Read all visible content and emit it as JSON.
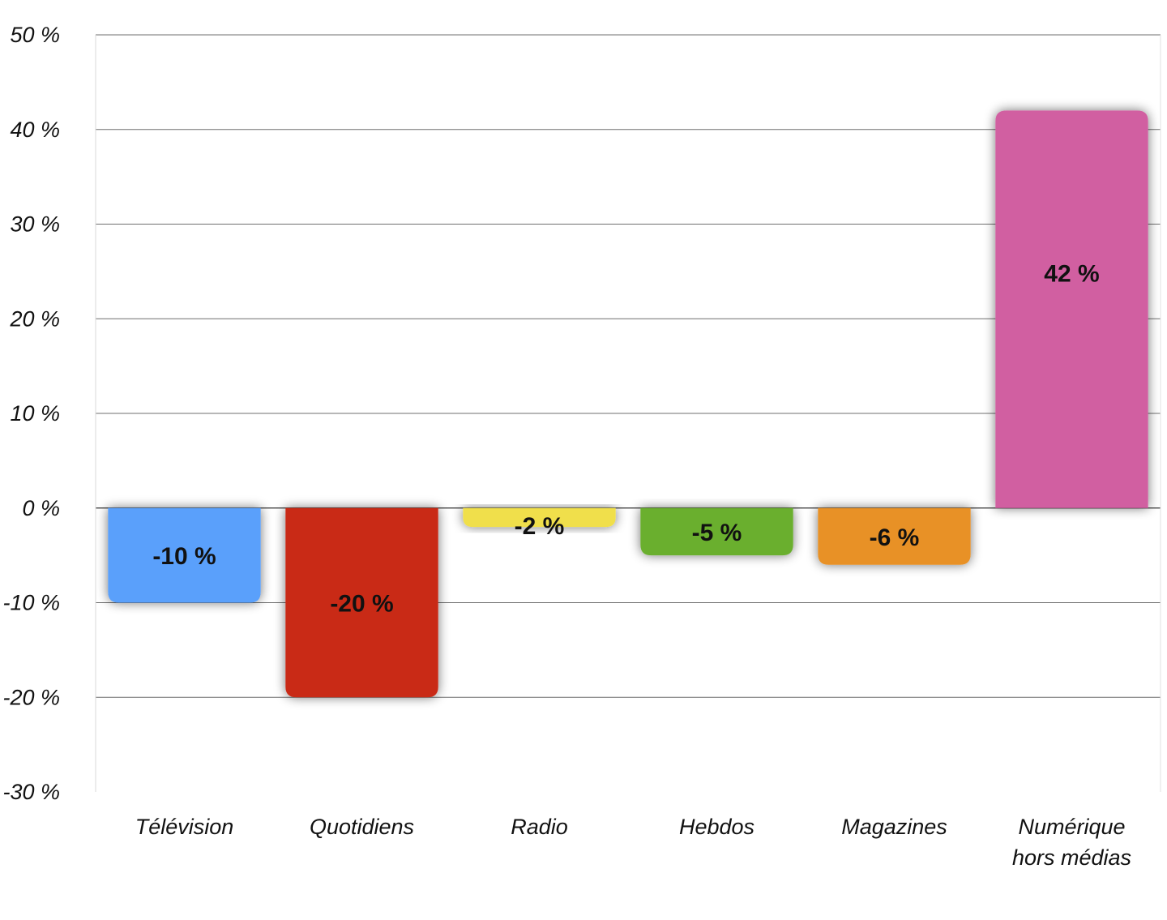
{
  "chart_data": {
    "type": "bar",
    "categories": [
      [
        "Télévision"
      ],
      [
        "Quotidiens"
      ],
      [
        "Radio"
      ],
      [
        "Hebdos"
      ],
      [
        "Magazines"
      ],
      [
        "Numérique",
        "hors médias"
      ]
    ],
    "values": [
      -10,
      -20,
      -2,
      -5,
      -6,
      42
    ],
    "value_labels": [
      "-10 %",
      "-20 %",
      "-2 %",
      "-5 %",
      "-6 %",
      "42 %"
    ],
    "colors": [
      "#5aa0fb",
      "#c92a16",
      "#f0df4b",
      "#6aaf2d",
      "#e89128",
      "#d15fa1"
    ],
    "ylim": [
      -30,
      50
    ],
    "y_ticks": [
      50,
      40,
      30,
      20,
      10,
      0,
      -10,
      -20,
      -30
    ],
    "y_tick_labels": [
      "50 %",
      "40 %",
      "30 %",
      "20 %",
      "10 %",
      "0 %",
      "-10 %",
      "-20 %",
      "-30 %"
    ],
    "grid": true,
    "title": "",
    "xlabel": "",
    "ylabel": ""
  }
}
